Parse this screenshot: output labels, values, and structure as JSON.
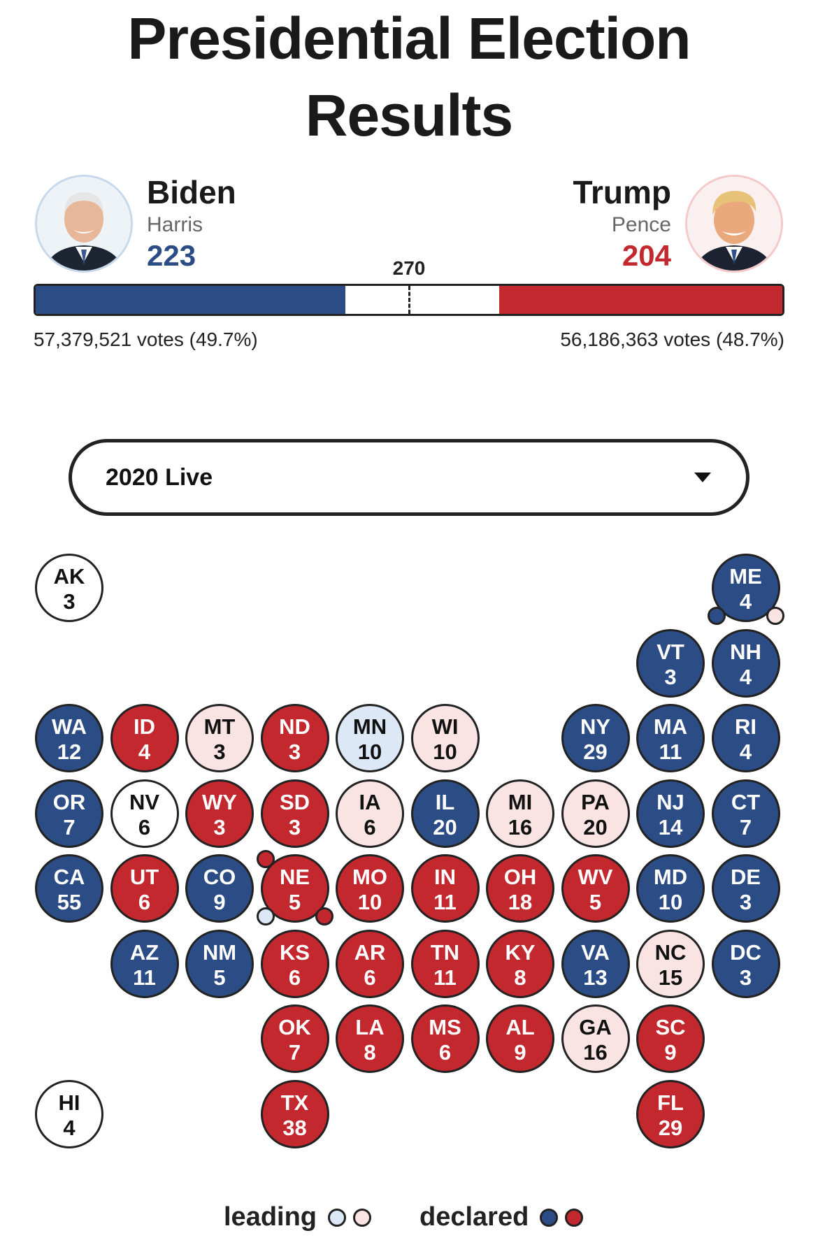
{
  "header": {
    "title_line1": "Presidential Election",
    "title_line2": "Results"
  },
  "candidates": {
    "dem": {
      "name": "Biden",
      "running_mate": "Harris",
      "electoral_votes": "223",
      "electoral_value": 223,
      "popular": "57,379,521 votes (49.7%)",
      "color": "#2b4c84"
    },
    "rep": {
      "name": "Trump",
      "running_mate": "Pence",
      "electoral_votes": "204",
      "electoral_value": 204,
      "popular": "56,186,363 votes (48.7%)",
      "color": "#c2282e"
    }
  },
  "threshold": {
    "label": "270",
    "total_electoral": 538
  },
  "selector": {
    "value": "2020 Live"
  },
  "states": [
    {
      "abbr": "AK",
      "ev": "3",
      "status": "tossup",
      "col": 0,
      "row": 0
    },
    {
      "abbr": "ME",
      "ev": "4",
      "status": "dem",
      "col": 9,
      "row": 0
    },
    {
      "abbr": "VT",
      "ev": "3",
      "status": "dem",
      "col": 8,
      "row": 1
    },
    {
      "abbr": "NH",
      "ev": "4",
      "status": "dem",
      "col": 9,
      "row": 1
    },
    {
      "abbr": "WA",
      "ev": "12",
      "status": "dem",
      "col": 0,
      "row": 2
    },
    {
      "abbr": "ID",
      "ev": "4",
      "status": "rep",
      "col": 1,
      "row": 2
    },
    {
      "abbr": "MT",
      "ev": "3",
      "status": "rep-lead",
      "col": 2,
      "row": 2
    },
    {
      "abbr": "ND",
      "ev": "3",
      "status": "rep",
      "col": 3,
      "row": 2
    },
    {
      "abbr": "MN",
      "ev": "10",
      "status": "dem-lead",
      "col": 4,
      "row": 2
    },
    {
      "abbr": "WI",
      "ev": "10",
      "status": "rep-lead",
      "col": 5,
      "row": 2
    },
    {
      "abbr": "NY",
      "ev": "29",
      "status": "dem",
      "col": 7,
      "row": 2
    },
    {
      "abbr": "MA",
      "ev": "11",
      "status": "dem",
      "col": 8,
      "row": 2
    },
    {
      "abbr": "RI",
      "ev": "4",
      "status": "dem",
      "col": 9,
      "row": 2
    },
    {
      "abbr": "OR",
      "ev": "7",
      "status": "dem",
      "col": 0,
      "row": 3
    },
    {
      "abbr": "NV",
      "ev": "6",
      "status": "tossup",
      "col": 1,
      "row": 3
    },
    {
      "abbr": "WY",
      "ev": "3",
      "status": "rep",
      "col": 2,
      "row": 3
    },
    {
      "abbr": "SD",
      "ev": "3",
      "status": "rep",
      "col": 3,
      "row": 3
    },
    {
      "abbr": "IA",
      "ev": "6",
      "status": "rep-lead",
      "col": 4,
      "row": 3
    },
    {
      "abbr": "IL",
      "ev": "20",
      "status": "dem",
      "col": 5,
      "row": 3
    },
    {
      "abbr": "MI",
      "ev": "16",
      "status": "rep-lead",
      "col": 6,
      "row": 3
    },
    {
      "abbr": "PA",
      "ev": "20",
      "status": "rep-lead",
      "col": 7,
      "row": 3
    },
    {
      "abbr": "NJ",
      "ev": "14",
      "status": "dem",
      "col": 8,
      "row": 3
    },
    {
      "abbr": "CT",
      "ev": "7",
      "status": "dem",
      "col": 9,
      "row": 3
    },
    {
      "abbr": "CA",
      "ev": "55",
      "status": "dem",
      "col": 0,
      "row": 4
    },
    {
      "abbr": "UT",
      "ev": "6",
      "status": "rep",
      "col": 1,
      "row": 4
    },
    {
      "abbr": "CO",
      "ev": "9",
      "status": "dem",
      "col": 2,
      "row": 4
    },
    {
      "abbr": "NE",
      "ev": "5",
      "status": "rep",
      "col": 3,
      "row": 4
    },
    {
      "abbr": "MO",
      "ev": "10",
      "status": "rep",
      "col": 4,
      "row": 4
    },
    {
      "abbr": "IN",
      "ev": "11",
      "status": "rep",
      "col": 5,
      "row": 4
    },
    {
      "abbr": "OH",
      "ev": "18",
      "status": "rep",
      "col": 6,
      "row": 4
    },
    {
      "abbr": "WV",
      "ev": "5",
      "status": "rep",
      "col": 7,
      "row": 4
    },
    {
      "abbr": "MD",
      "ev": "10",
      "status": "dem",
      "col": 8,
      "row": 4
    },
    {
      "abbr": "DE",
      "ev": "3",
      "status": "dem",
      "col": 9,
      "row": 4
    },
    {
      "abbr": "AZ",
      "ev": "11",
      "status": "dem",
      "col": 1,
      "row": 5
    },
    {
      "abbr": "NM",
      "ev": "5",
      "status": "dem",
      "col": 2,
      "row": 5
    },
    {
      "abbr": "KS",
      "ev": "6",
      "status": "rep",
      "col": 3,
      "row": 5
    },
    {
      "abbr": "AR",
      "ev": "6",
      "status": "rep",
      "col": 4,
      "row": 5
    },
    {
      "abbr": "TN",
      "ev": "11",
      "status": "rep",
      "col": 5,
      "row": 5
    },
    {
      "abbr": "KY",
      "ev": "8",
      "status": "rep",
      "col": 6,
      "row": 5
    },
    {
      "abbr": "VA",
      "ev": "13",
      "status": "dem",
      "col": 7,
      "row": 5
    },
    {
      "abbr": "NC",
      "ev": "15",
      "status": "rep-lead",
      "col": 8,
      "row": 5
    },
    {
      "abbr": "DC",
      "ev": "3",
      "status": "dem",
      "col": 9,
      "row": 5
    },
    {
      "abbr": "OK",
      "ev": "7",
      "status": "rep",
      "col": 3,
      "row": 6
    },
    {
      "abbr": "LA",
      "ev": "8",
      "status": "rep",
      "col": 4,
      "row": 6
    },
    {
      "abbr": "MS",
      "ev": "6",
      "status": "rep",
      "col": 5,
      "row": 6
    },
    {
      "abbr": "AL",
      "ev": "9",
      "status": "rep",
      "col": 6,
      "row": 6
    },
    {
      "abbr": "GA",
      "ev": "16",
      "status": "rep-lead",
      "col": 7,
      "row": 6
    },
    {
      "abbr": "SC",
      "ev": "9",
      "status": "rep",
      "col": 8,
      "row": 6
    },
    {
      "abbr": "HI",
      "ev": "4",
      "status": "tossup",
      "col": 0,
      "row": 7
    },
    {
      "abbr": "TX",
      "ev": "38",
      "status": "rep",
      "col": 3,
      "row": 7
    },
    {
      "abbr": "FL",
      "ev": "29",
      "status": "rep",
      "col": 8,
      "row": 7
    }
  ],
  "districts": [
    {
      "state": "ME",
      "position": "bottom-left",
      "status": "dem"
    },
    {
      "state": "ME",
      "position": "bottom-right",
      "status": "rep-lead"
    },
    {
      "state": "NE",
      "position": "top-left",
      "status": "rep"
    },
    {
      "state": "NE",
      "position": "bottom-left",
      "status": "dem-lead"
    },
    {
      "state": "NE",
      "position": "bottom-right",
      "status": "rep"
    }
  ],
  "legend": {
    "leading_label": "leading",
    "declared_label": "declared",
    "colors": {
      "dem": "#2b4c84",
      "rep": "#c2282e",
      "dem_lead": "#dce8f6",
      "rep_lead": "#f9e3e3"
    }
  }
}
